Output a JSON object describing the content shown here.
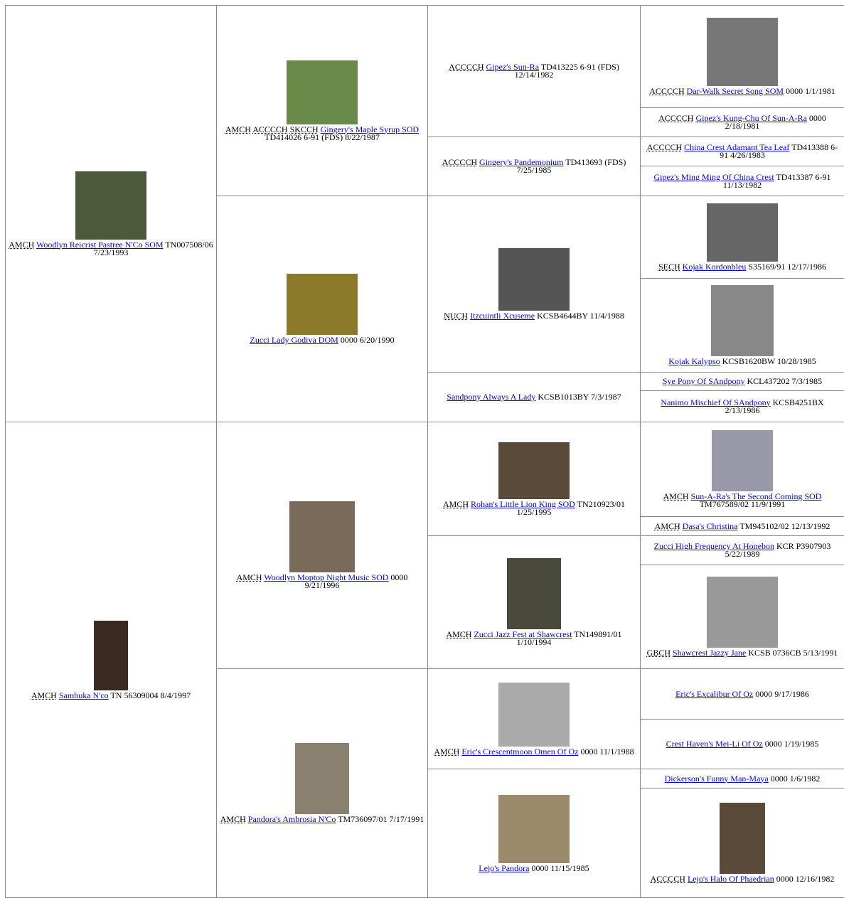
{
  "pedigree": [
    [
      {
        "titles": [
          "AMCH"
        ],
        "name": "Woodlyn Reicrist Pastree N'Co SOM",
        "info": "TN007508/06 7/23/1993"
      },
      {
        "titles": [
          "AMCH"
        ],
        "name": "Sambuka N'co",
        "info": "TN 56309004 8/4/1997"
      }
    ],
    [
      {
        "titles": [
          "AMCH",
          "ACCCCH",
          "SKCCH"
        ],
        "name": "Gingery's Maple Syrup SOD",
        "info": "TD414026 6-91 (FDS) 8/22/1987"
      },
      {
        "titles": [],
        "name": "Zucci Lady Godiva DOM",
        "info": "0000 6/20/1990"
      },
      {
        "titles": [
          "AMCH"
        ],
        "name": "Woodlyn Moptop Night Music SOD",
        "info": "0000 9/21/1996"
      },
      {
        "titles": [
          "AMCH"
        ],
        "name": "Pandora's Ambrosia N'Co",
        "info": "TM736097/01 7/17/1991"
      }
    ],
    [
      {
        "titles": [
          "ACCCCH"
        ],
        "name": "Gipez's Sun-Ra",
        "info": "TD413225 6-91 (FDS) 12/14/1982"
      },
      {
        "titles": [
          "ACCCCH"
        ],
        "name": "Gingery's Pandemonium",
        "info": "TD413693 (FDS) 7/25/1985"
      },
      {
        "titles": [
          "NUCH"
        ],
        "name": "Itzcuintli Xcuseme",
        "info": "KCSB4644BY 11/4/1988"
      },
      {
        "titles": [],
        "name": "Sandpony Always A Lady",
        "info": "KCSB1013BY 7/3/1987"
      },
      {
        "titles": [
          "AMCH"
        ],
        "name": "Rohan's Little Lion King SOD",
        "info": "TN210923/01 1/25/1995"
      },
      {
        "titles": [
          "AMCH"
        ],
        "name": "Zucci Jazz Fest at Shawcrest",
        "info": "TN149891/01 1/10/1994"
      },
      {
        "titles": [
          "AMCH"
        ],
        "name": "Eric's Crescentmoon Omen Of Oz",
        "info": "0000 11/1/1988"
      },
      {
        "titles": [],
        "name": "Lejo's Pandora",
        "info": "0000 11/15/1985"
      }
    ],
    [
      {
        "titles": [
          "ACCCCH"
        ],
        "name": "Dar-Walk Secret Song SOM",
        "info": "0000 1/1/1981"
      },
      {
        "titles": [
          "ACCCCH"
        ],
        "name": "Gipez's Kung-Chu Of Sun-A-Ra",
        "info": "0000 2/18/1981"
      },
      {
        "titles": [
          "ACCCCH"
        ],
        "name": "China Crest Adamant Tea Leaf",
        "info": "TD413388 6-91 4/26/1983"
      },
      {
        "titles": [],
        "name": "Gipez's Ming Ming Of China Crest",
        "info": "TD413387 6-91 11/13/1982"
      },
      {
        "titles": [
          "SECH"
        ],
        "name": "Kojak Kordonbleu",
        "info": "S35169/91 12/17/1986"
      },
      {
        "titles": [],
        "name": "Kojak Kalypso",
        "info": "KCSB1620BW 10/28/1985"
      },
      {
        "titles": [],
        "name": "Sye Pony Of SAndpony",
        "info": "KCL437202 7/3/1985"
      },
      {
        "titles": [],
        "name": "Nanimo Mischief Of SAndpony",
        "info": "KCSB4251BX 2/13/1986"
      },
      {
        "titles": [
          "AMCH"
        ],
        "name": "Sun-A-Ra's The Second Coming SOD",
        "info": "TM767589/02 11/9/1991"
      },
      {
        "titles": [
          "AMCH"
        ],
        "name": "Dasa's Christina",
        "info": "TM945102/02 12/13/1992"
      },
      {
        "titles": [],
        "name": "Zucci High Frequency At Honebon",
        "info": "KCR P3907903 5/22/1989"
      },
      {
        "titles": [
          "GBCH"
        ],
        "name": "Shawcrest Jazzy Jane",
        "info": "KCSB 0736CB 5/13/1991"
      },
      {
        "titles": [],
        "name": "Eric's Excalibur Of Oz",
        "info": "0000 9/17/1986"
      },
      {
        "titles": [],
        "name": "Crest Haven's Mei-Li Of Oz",
        "info": "0000 1/19/1985"
      },
      {
        "titles": [],
        "name": "Dickerson's Funny Man-Maya",
        "info": "0000 1/6/1982"
      },
      {
        "titles": [
          "ACCCCH"
        ],
        "name": "Lejo's Halo Of Phaedrian",
        "info": "0000 12/16/1982"
      }
    ]
  ]
}
